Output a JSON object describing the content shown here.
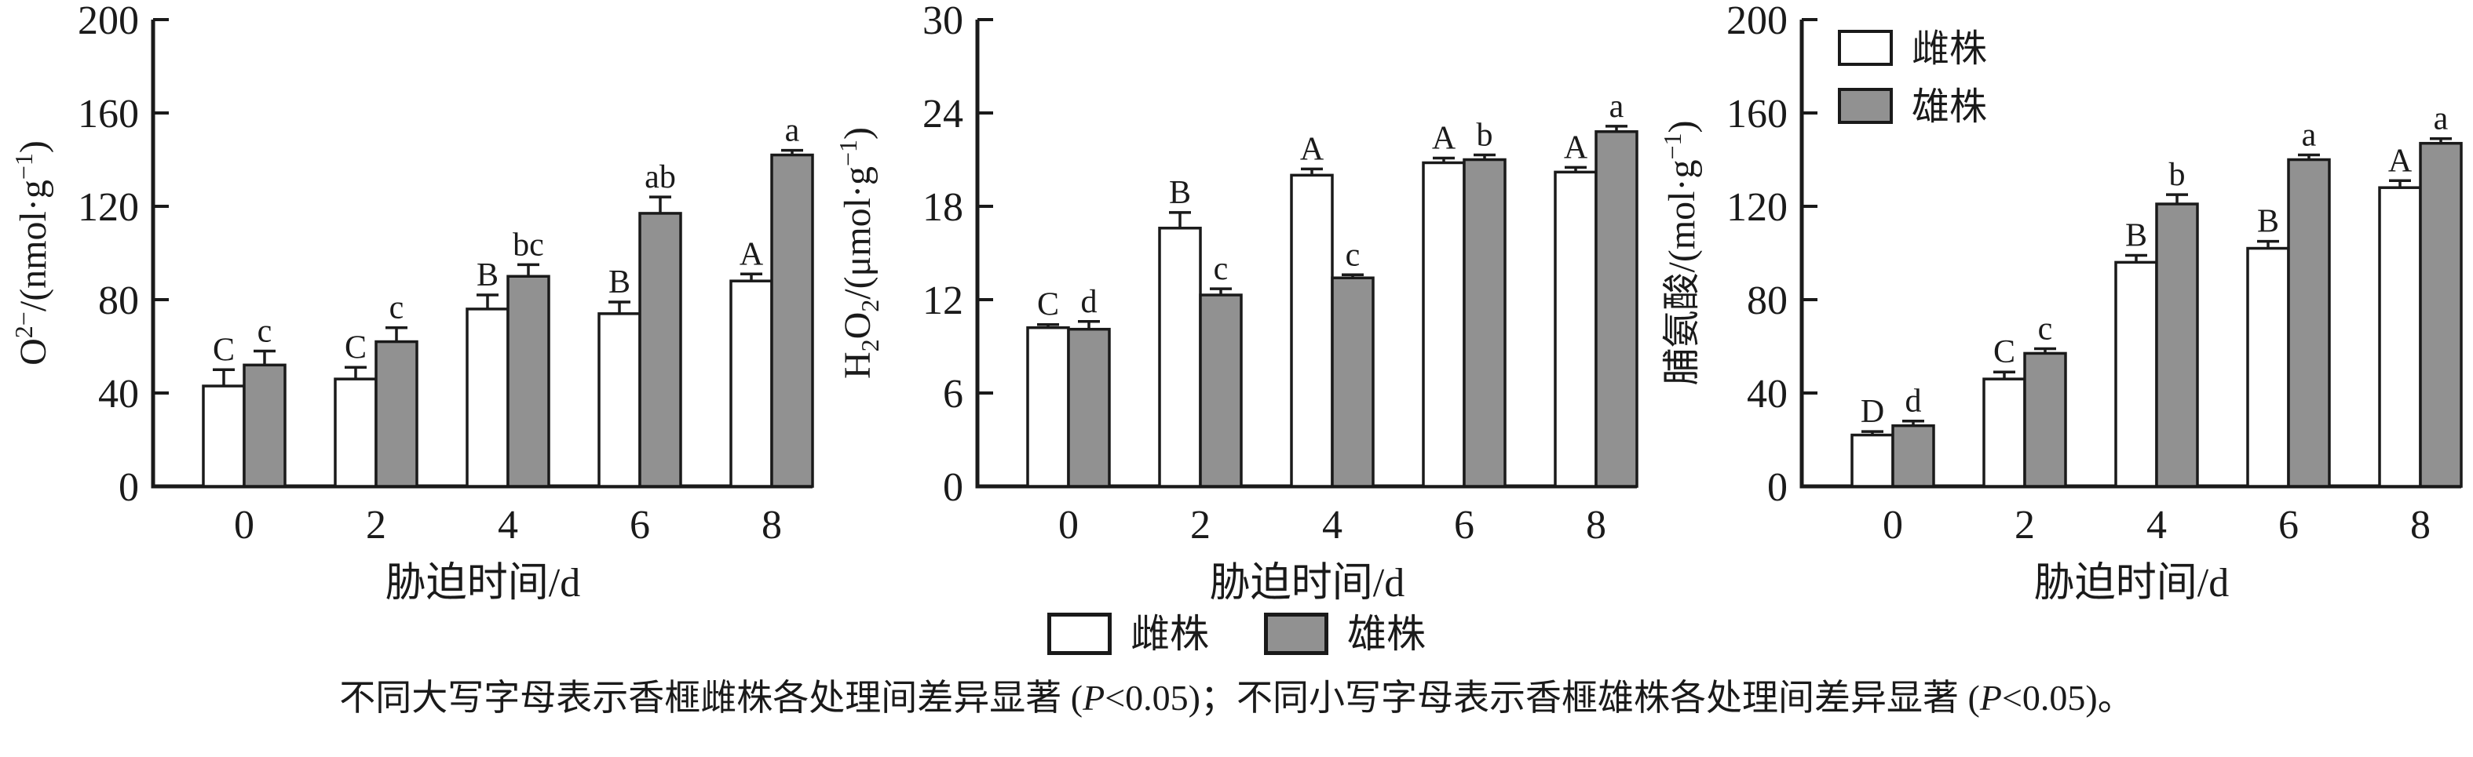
{
  "figure": {
    "xlabel": "胁迫时间/d",
    "note": "不同大写字母表示香榧雌株各处理间差异显著 (P<0.05)；不同小写字母表示香榧雄株各处理间差异显著 (P<0.05)。",
    "note_parts": [
      {
        "text": "不同大写字母表示香榧雌株各处理间差异显著 (",
        "italic": false
      },
      {
        "text": "P",
        "italic": true
      },
      {
        "text": "<0.05)；不同小写字母表示香榧雄株各处理间差异显著 (",
        "italic": false
      },
      {
        "text": "P",
        "italic": true
      },
      {
        "text": "<0.05)。",
        "italic": false
      }
    ]
  },
  "legend": {
    "position": "bottom-center",
    "items": [
      {
        "label": "雌株",
        "fill": "#ffffff"
      },
      {
        "label": "雄株",
        "fill": "#919191"
      }
    ]
  },
  "colors": {
    "female_fill": "#ffffff",
    "male_fill": "#919191",
    "stroke": "#1a1a1a",
    "background": "#ffffff"
  },
  "chart_data": [
    {
      "type": "bar",
      "title": "",
      "xlabel": "胁迫时间/d",
      "ylabel": "O²⁻/(nmol·g⁻¹)",
      "ylabel_parts": [
        {
          "text": "O",
          "script": "normal"
        },
        {
          "text": "2−",
          "script": "sup"
        },
        {
          "text": "/(nmol·g",
          "script": "normal"
        },
        {
          "text": "−1",
          "script": "sup"
        },
        {
          "text": ")",
          "script": "normal"
        }
      ],
      "categories": [
        "0",
        "2",
        "4",
        "6",
        "8"
      ],
      "ylim": [
        0,
        200
      ],
      "yticks": [
        0,
        40,
        80,
        120,
        160,
        200
      ],
      "grid": false,
      "inset_legend": false,
      "series": [
        {
          "name": "雌株",
          "fill": "#ffffff",
          "values": [
            43,
            46,
            76,
            74,
            88
          ],
          "errors": [
            7,
            5,
            6,
            5,
            3
          ],
          "letters": [
            "C",
            "C",
            "B",
            "B",
            "A"
          ]
        },
        {
          "name": "雄株",
          "fill": "#919191",
          "values": [
            52,
            62,
            90,
            117,
            142
          ],
          "errors": [
            6,
            6,
            5,
            7,
            2
          ],
          "letters": [
            "c",
            "c",
            "bc",
            "ab",
            "a"
          ]
        }
      ]
    },
    {
      "type": "bar",
      "title": "",
      "xlabel": "胁迫时间/d",
      "ylabel": "H₂O₂/(μmol·g⁻¹)",
      "ylabel_parts": [
        {
          "text": "H",
          "script": "normal"
        },
        {
          "text": "2",
          "script": "sub"
        },
        {
          "text": "O",
          "script": "normal"
        },
        {
          "text": "2",
          "script": "sub"
        },
        {
          "text": "/(μmol·g",
          "script": "normal"
        },
        {
          "text": "−1",
          "script": "sup"
        },
        {
          "text": ")",
          "script": "normal"
        }
      ],
      "categories": [
        "0",
        "2",
        "4",
        "6",
        "8"
      ],
      "ylim": [
        0,
        30
      ],
      "yticks": [
        0,
        6,
        12,
        18,
        24,
        30
      ],
      "grid": false,
      "inset_legend": false,
      "series": [
        {
          "name": "雌株",
          "fill": "#ffffff",
          "values": [
            10.2,
            16.6,
            20.0,
            20.8,
            20.2
          ],
          "errors": [
            0.2,
            1.0,
            0.4,
            0.3,
            0.3
          ],
          "letters": [
            "C",
            "B",
            "A",
            "A",
            "A"
          ]
        },
        {
          "name": "雄株",
          "fill": "#919191",
          "values": [
            10.1,
            12.3,
            13.4,
            21.0,
            22.8
          ],
          "errors": [
            0.5,
            0.4,
            0.2,
            0.3,
            0.35
          ],
          "letters": [
            "d",
            "c",
            "c",
            "b",
            "a"
          ]
        }
      ]
    },
    {
      "type": "bar",
      "title": "",
      "xlabel": "胁迫时间/d",
      "ylabel": "脯氨酸/(mol·g⁻¹)",
      "ylabel_parts": [
        {
          "text": "脯氨酸/(mol·g",
          "script": "normal"
        },
        {
          "text": "−1",
          "script": "sup"
        },
        {
          "text": ")",
          "script": "normal"
        }
      ],
      "categories": [
        "0",
        "2",
        "4",
        "6",
        "8"
      ],
      "ylim": [
        0,
        200
      ],
      "yticks": [
        0,
        40,
        80,
        120,
        160,
        200
      ],
      "grid": false,
      "inset_legend": true,
      "series": [
        {
          "name": "雌株",
          "fill": "#ffffff",
          "values": [
            22,
            46,
            96,
            102,
            128
          ],
          "errors": [
            1.5,
            3,
            3,
            3,
            3
          ],
          "letters": [
            "D",
            "C",
            "B",
            "B",
            "A"
          ]
        },
        {
          "name": "雄株",
          "fill": "#919191",
          "values": [
            26,
            57,
            121,
            140,
            147
          ],
          "errors": [
            2,
            2,
            4,
            2,
            2
          ],
          "letters": [
            "d",
            "c",
            "b",
            "a",
            "a"
          ]
        }
      ]
    }
  ]
}
